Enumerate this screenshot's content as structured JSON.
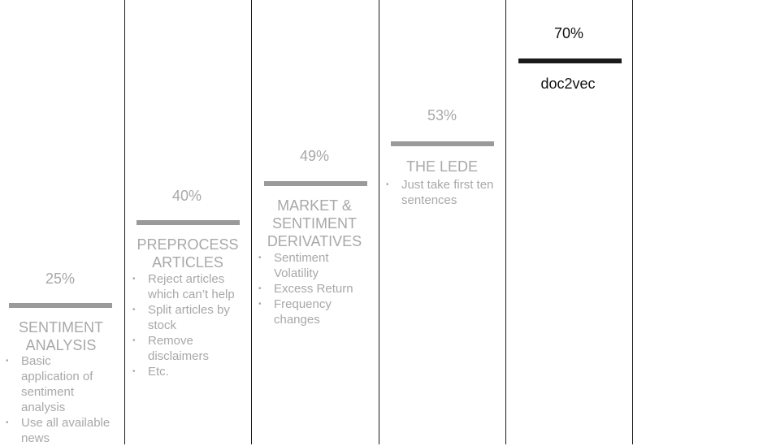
{
  "steps": [
    {
      "id": "sentiment-analysis",
      "percent": "25%",
      "title_lines": [
        "SENTIMENT",
        "ANALYSIS"
      ],
      "bullets": [
        "Basic application of sentiment analysis",
        "Use all available news"
      ]
    },
    {
      "id": "preprocess-articles",
      "percent": "40%",
      "title_lines": [
        "PREPROCESS",
        "ARTICLES"
      ],
      "bullets": [
        "Reject articles which can’t help",
        "Split articles by stock",
        "Remove disclaimers",
        "Etc."
      ]
    },
    {
      "id": "market-sentiment-derivatives",
      "percent": "49%",
      "title_lines": [
        "MARKET &",
        "SENTIMENT",
        "DERIVATIVES"
      ],
      "bullets": [
        "Sentiment Volatility",
        "Excess Return",
        "Frequency changes"
      ]
    },
    {
      "id": "the-lede",
      "percent": "53%",
      "title_lines": [
        "THE LEDE"
      ],
      "bullets": [
        "Just take first ten sentences"
      ]
    },
    {
      "id": "doc2vec",
      "percent": "70%",
      "title_lines": [
        "doc2vec"
      ],
      "bullets": []
    }
  ],
  "colors": {
    "muted_text": "#a8a8a8",
    "muted_bar": "#9a9a9a",
    "highlight": "#111111",
    "divider": "#1a1a1a"
  }
}
